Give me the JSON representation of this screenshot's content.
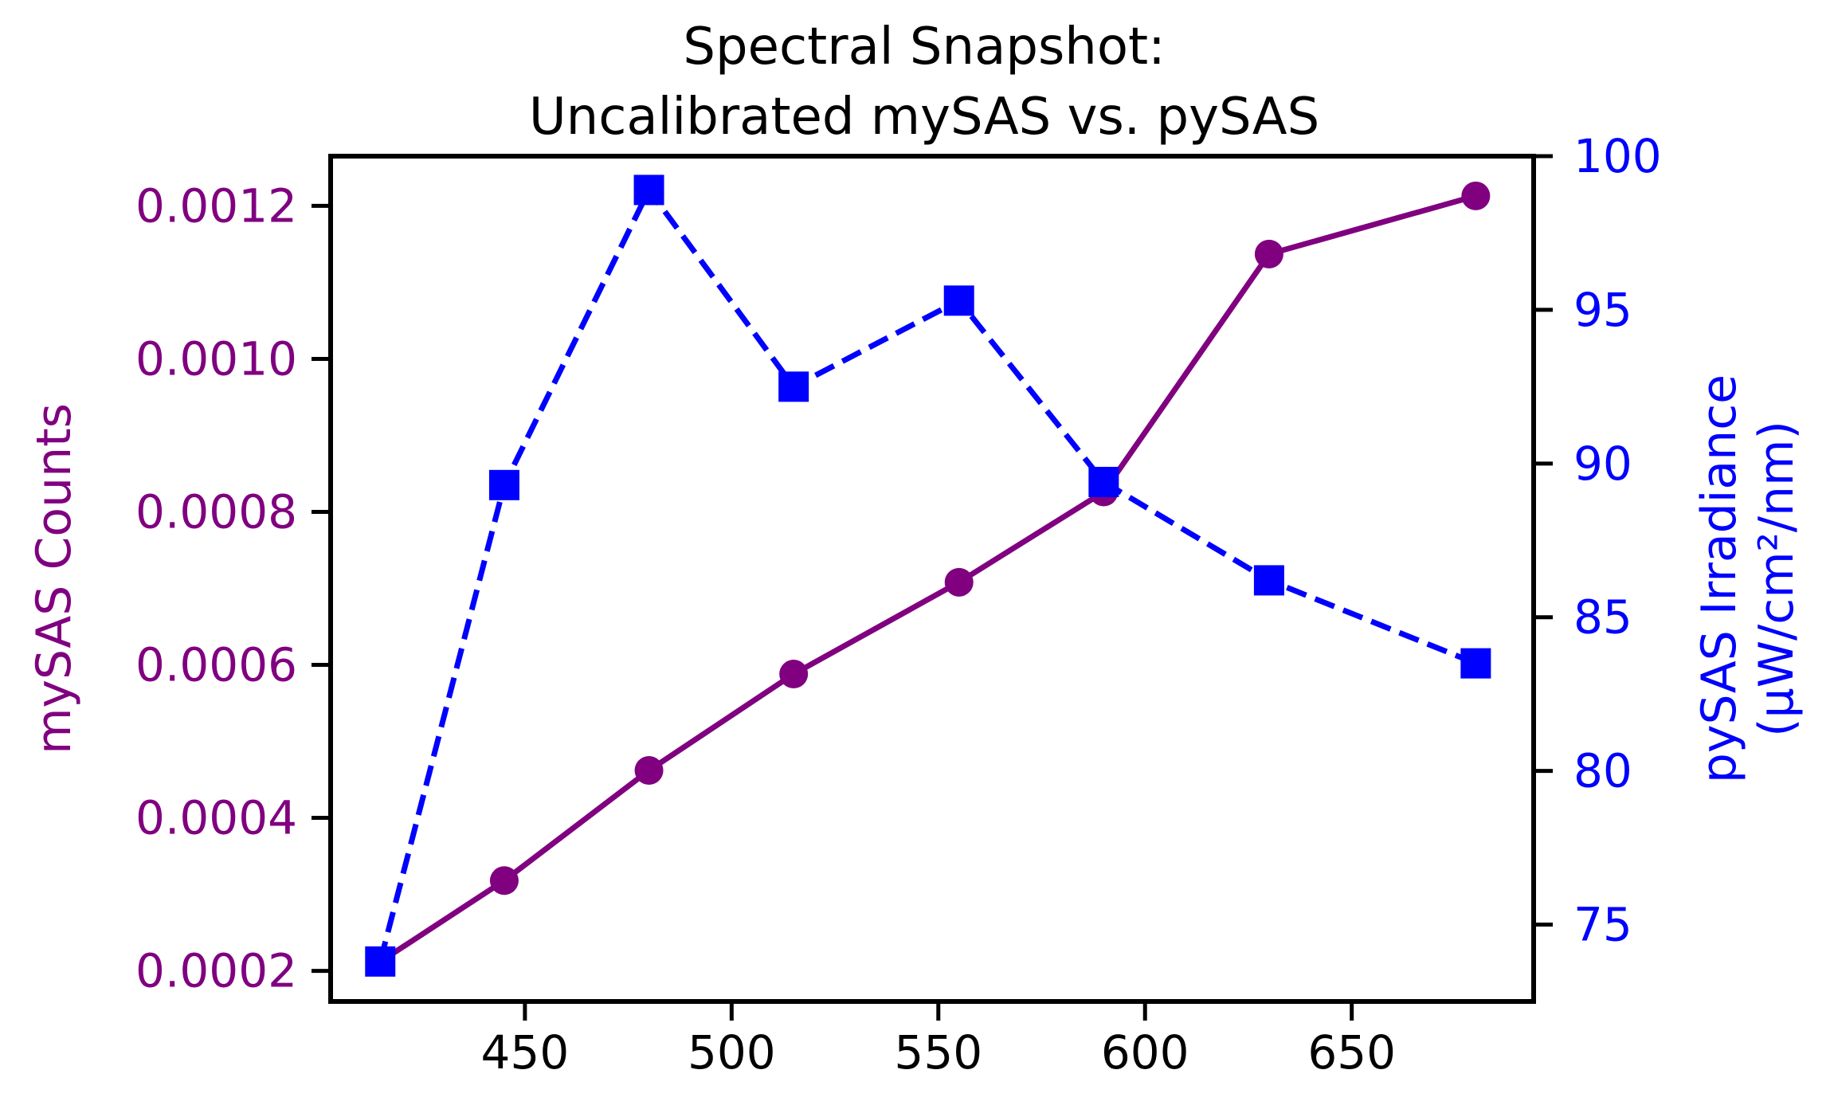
{
  "chart_data": {
    "type": "line",
    "title_lines": [
      "Spectral Snapshot:",
      "Uncalibrated mySAS vs. pySAS"
    ],
    "xlabel": "",
    "x_ticks": [
      450,
      500,
      550,
      600,
      650
    ],
    "xlim": [
      403,
      694
    ],
    "y1": {
      "label": "mySAS Counts",
      "color": "#800080",
      "ylim": [
        0.00016,
        0.001265
      ],
      "ticks": [
        "0.0002",
        "0.0004",
        "0.0006",
        "0.0008",
        "0.0010",
        "0.0012"
      ],
      "tick_values": [
        0.0002,
        0.0004,
        0.0006,
        0.0008,
        0.001,
        0.0012
      ]
    },
    "y2": {
      "label_lines": [
        "pySAS Irradiance",
        "(µW/cm²/nm)"
      ],
      "color": "#0000ff",
      "ylim": [
        72.5,
        100
      ],
      "ticks": [
        "75",
        "80",
        "85",
        "90",
        "95",
        "100"
      ],
      "tick_values": [
        75,
        80,
        85,
        90,
        95,
        100
      ]
    },
    "x": [
      415,
      445,
      480,
      515,
      555,
      590,
      630,
      680
    ],
    "series": [
      {
        "axis": "left",
        "color": "#800080",
        "line_style": "solid",
        "marker": "circle",
        "values": [
          0.000212,
          0.000318,
          0.000462,
          0.000588,
          0.000708,
          0.000826,
          0.001137,
          0.001213
        ]
      },
      {
        "axis": "right",
        "color": "#0000ff",
        "line_style": "dashed",
        "marker": "square",
        "values": [
          73.8,
          89.3,
          98.9,
          92.5,
          95.3,
          89.4,
          86.2,
          83.5
        ]
      }
    ],
    "grid": false,
    "legend": "none"
  }
}
